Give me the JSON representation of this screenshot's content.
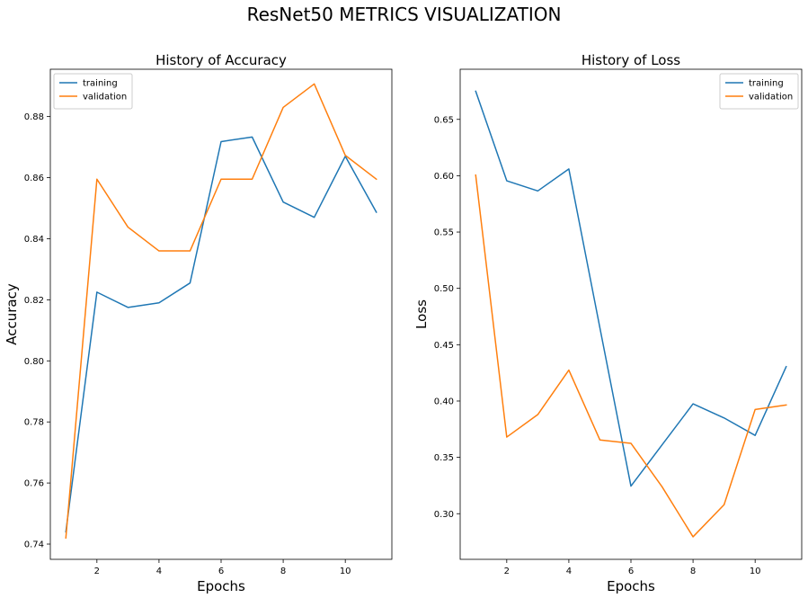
{
  "figure": {
    "suptitle": "ResNet50 METRICS VISUALIZATION",
    "colors": {
      "training": "#1f77b4",
      "validation": "#ff7f0e"
    }
  },
  "chart_data": [
    {
      "type": "line",
      "title": "History of Accuracy",
      "xlabel": "Epochs",
      "ylabel": "Accuracy",
      "xlim": [
        0.5,
        11.5
      ],
      "ylim": [
        0.735,
        0.8955
      ],
      "xticks": [
        2,
        4,
        6,
        8,
        10
      ],
      "yticks": [
        0.74,
        0.76,
        0.78,
        0.8,
        0.82,
        0.84,
        0.86,
        0.88
      ],
      "ytick_labels": [
        "0.74",
        "0.76",
        "0.78",
        "0.80",
        "0.82",
        "0.84",
        "0.86",
        "0.88"
      ],
      "grid": false,
      "legend": "upper left",
      "x": [
        1,
        2,
        3,
        4,
        5,
        6,
        7,
        8,
        9,
        10,
        11
      ],
      "series": [
        {
          "name": "training",
          "color": "#1f77b4",
          "values": [
            0.744,
            0.8225,
            0.8175,
            0.819,
            0.8255,
            0.8718,
            0.8733,
            0.852,
            0.847,
            0.867,
            0.8487
          ]
        },
        {
          "name": "validation",
          "color": "#ff7f0e",
          "values": [
            0.742,
            0.8595,
            0.8438,
            0.836,
            0.836,
            0.8595,
            0.8595,
            0.883,
            0.8907,
            0.8673,
            0.8595
          ]
        }
      ]
    },
    {
      "type": "line",
      "title": "History of Loss",
      "xlabel": "Epochs",
      "ylabel": "Loss",
      "xlim": [
        0.5,
        11.5
      ],
      "ylim": [
        0.2595,
        0.6945
      ],
      "xticks": [
        2,
        4,
        6,
        8,
        10
      ],
      "yticks": [
        0.3,
        0.35,
        0.4,
        0.45,
        0.5,
        0.55,
        0.6,
        0.65
      ],
      "ytick_labels": [
        "0.30",
        "0.35",
        "0.40",
        "0.45",
        "0.50",
        "0.55",
        "0.60",
        "0.65"
      ],
      "grid": false,
      "legend": "upper right",
      "x": [
        1,
        2,
        3,
        4,
        5,
        6,
        7,
        8,
        9,
        10,
        11
      ],
      "series": [
        {
          "name": "training",
          "color": "#1f77b4",
          "values": [
            0.675,
            0.5955,
            0.5865,
            0.606,
            0.465,
            0.3245,
            0.361,
            0.3975,
            0.385,
            0.3695,
            0.4305
          ]
        },
        {
          "name": "validation",
          "color": "#ff7f0e",
          "values": [
            0.6005,
            0.368,
            0.388,
            0.4275,
            0.3655,
            0.3625,
            0.324,
            0.2795,
            0.308,
            0.3925,
            0.3965
          ]
        }
      ]
    }
  ]
}
